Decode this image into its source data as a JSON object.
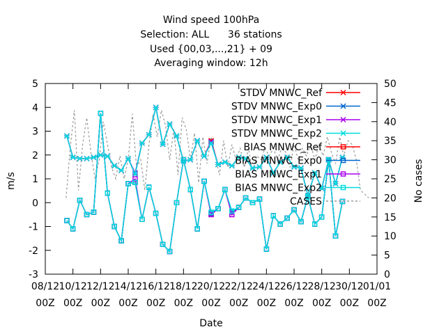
{
  "chart_data": {
    "type": "line",
    "title_lines": [
      "Wind speed 100hPa",
      "Selection: ALL      36 stations",
      "Used {00,03,...,21} + 09",
      "Averaging window: 12h"
    ],
    "xlabel": "Date",
    "ylabel": "m/s",
    "y2label": "No cases",
    "xlim": [
      0,
      12
    ],
    "ylim": [
      -3,
      5
    ],
    "y2lim": [
      0,
      50
    ],
    "x_ticks": [
      {
        "x": 0,
        "date": "08/12",
        "time": "00Z"
      },
      {
        "x": 1,
        "date": "10/12",
        "time": "00Z"
      },
      {
        "x": 2,
        "date": "12/12",
        "time": "00Z"
      },
      {
        "x": 3,
        "date": "14/12",
        "time": "00Z"
      },
      {
        "x": 4,
        "date": "16/12",
        "time": "00Z"
      },
      {
        "x": 5,
        "date": "18/12",
        "time": "00Z"
      },
      {
        "x": 6,
        "date": "20/12",
        "time": "00Z"
      },
      {
        "x": 7,
        "date": "22/12",
        "time": "00Z"
      },
      {
        "x": 8,
        "date": "24/12",
        "time": "00Z"
      },
      {
        "x": 9,
        "date": "26/12",
        "time": "00Z"
      },
      {
        "x": 10,
        "date": "28/12",
        "time": "00Z"
      },
      {
        "x": 11,
        "date": "30/12",
        "time": "00Z"
      },
      {
        "x": 12,
        "date": "01/01",
        "time": "00Z"
      }
    ],
    "y_ticks": [
      -3,
      -2,
      -1,
      0,
      1,
      2,
      3,
      4,
      5
    ],
    "y2_ticks": [
      0,
      5,
      10,
      15,
      20,
      25,
      30,
      35,
      40,
      45,
      50
    ],
    "grid": false,
    "legend_position": "top-right",
    "x": [
      0.78,
      1.0,
      1.25,
      1.5,
      1.75,
      2.0,
      2.25,
      2.5,
      2.75,
      3.0,
      3.25,
      3.5,
      3.75,
      4.0,
      4.25,
      4.5,
      4.75,
      5.0,
      5.25,
      5.5,
      5.75,
      6.0,
      6.25,
      6.5,
      6.75,
      7.0,
      7.25,
      7.5,
      7.75,
      8.0,
      8.25,
      8.5,
      8.75,
      9.0,
      9.25,
      9.5,
      9.75,
      10.0,
      10.25,
      10.5,
      10.75,
      11.0,
      11.25
    ],
    "series": [
      {
        "name": "STDV MNWC_Ref",
        "color": "#ff0000",
        "marker": "x",
        "axis": "y",
        "values": [
          2.8,
          1.9,
          1.85,
          1.85,
          1.9,
          2.0,
          1.95,
          1.55,
          1.35,
          1.85,
          1.2,
          2.5,
          2.85,
          4.0,
          2.45,
          3.3,
          2.8,
          1.75,
          1.8,
          2.6,
          1.95,
          2.6,
          1.6,
          1.7,
          1.55,
          1.9,
          1.85,
          1.45,
          1.5,
          1.9,
          1.25,
          1.7,
          1.9,
          1.5,
          1.45,
          0.3,
          1.25,
          0.6,
          1.8,
          0.8,
          1.9,
          null,
          null
        ]
      },
      {
        "name": "STDV MNWC_Exp0",
        "color": "#0066cc",
        "marker": "x",
        "axis": "y",
        "values": [
          2.8,
          1.9,
          1.85,
          1.85,
          1.9,
          2.0,
          1.95,
          1.55,
          1.35,
          1.85,
          1.2,
          2.5,
          2.85,
          4.0,
          2.45,
          3.3,
          2.8,
          1.75,
          1.8,
          2.6,
          1.95,
          2.55,
          1.6,
          1.7,
          1.55,
          1.9,
          1.85,
          1.45,
          1.5,
          1.9,
          1.25,
          1.7,
          1.9,
          1.5,
          1.45,
          0.3,
          1.25,
          0.6,
          1.8,
          0.8,
          1.9,
          null,
          null
        ]
      },
      {
        "name": "STDV MNWC_Exp1",
        "color": "#aa00ee",
        "marker": "x",
        "axis": "y",
        "values": [
          2.8,
          1.9,
          1.85,
          1.85,
          1.9,
          2.0,
          1.95,
          1.55,
          1.35,
          1.85,
          1.25,
          2.5,
          2.85,
          4.0,
          2.45,
          3.3,
          2.8,
          1.75,
          1.8,
          2.6,
          1.95,
          2.55,
          1.6,
          1.7,
          1.55,
          1.9,
          1.85,
          1.45,
          1.5,
          1.9,
          1.25,
          1.7,
          1.9,
          1.5,
          1.45,
          0.3,
          1.25,
          0.6,
          1.8,
          0.8,
          1.9,
          null,
          null
        ]
      },
      {
        "name": "STDV MNWC_Exp2",
        "color": "#00dddd",
        "marker": "x",
        "axis": "y",
        "values": [
          2.8,
          1.9,
          1.85,
          1.85,
          1.9,
          2.0,
          1.95,
          1.55,
          1.35,
          1.85,
          1.2,
          2.5,
          2.85,
          4.0,
          2.45,
          3.3,
          2.8,
          1.75,
          1.8,
          2.6,
          1.95,
          2.5,
          1.6,
          1.7,
          1.55,
          1.9,
          1.85,
          1.45,
          1.5,
          1.9,
          1.25,
          1.7,
          1.9,
          1.5,
          1.45,
          0.3,
          1.25,
          0.6,
          1.8,
          0.8,
          1.9,
          null,
          null
        ]
      },
      {
        "name": "BIAS MNWC_Ref",
        "color": "#ff0000",
        "marker": "square",
        "axis": "y",
        "values": [
          -0.75,
          -1.1,
          0.1,
          -0.5,
          -0.4,
          3.75,
          0.4,
          -1.0,
          -1.6,
          0.8,
          0.85,
          -0.7,
          0.65,
          -0.45,
          -1.75,
          -2.05,
          0.0,
          1.8,
          0.55,
          -1.1,
          0.9,
          -0.5,
          -0.25,
          0.55,
          -0.5,
          -0.2,
          0.2,
          0.0,
          0.15,
          -1.95,
          -0.55,
          -0.9,
          -0.65,
          -0.3,
          -0.8,
          0.25,
          -0.9,
          -0.6,
          1.8,
          -1.4,
          0.05,
          null,
          null
        ]
      },
      {
        "name": "BIAS MNWC_Exp0",
        "color": "#0066cc",
        "marker": "square",
        "axis": "y",
        "values": [
          -0.75,
          -1.1,
          0.1,
          -0.5,
          -0.4,
          3.75,
          0.4,
          -1.0,
          -1.6,
          0.8,
          0.85,
          -0.7,
          0.65,
          -0.45,
          -1.75,
          -2.05,
          0.0,
          1.8,
          0.55,
          -1.1,
          0.9,
          -0.45,
          -0.25,
          0.55,
          -0.4,
          -0.2,
          0.2,
          0.0,
          0.15,
          -1.95,
          -0.55,
          -0.9,
          -0.65,
          -0.3,
          -0.8,
          0.25,
          -0.9,
          -0.6,
          1.8,
          -1.4,
          0.05,
          null,
          null
        ]
      },
      {
        "name": "BIAS MNWC_Exp1",
        "color": "#aa00ee",
        "marker": "square",
        "axis": "y",
        "values": [
          -0.75,
          -1.1,
          0.1,
          -0.5,
          -0.4,
          3.75,
          0.4,
          -1.0,
          -1.6,
          0.8,
          1.0,
          -0.7,
          0.65,
          -0.45,
          -1.75,
          -2.05,
          0.0,
          1.8,
          0.55,
          -1.1,
          0.9,
          -0.5,
          -0.25,
          0.55,
          -0.5,
          -0.2,
          0.2,
          0.0,
          0.15,
          -1.95,
          -0.55,
          -0.9,
          -0.65,
          -0.3,
          -0.8,
          0.25,
          -0.9,
          -0.6,
          1.8,
          -1.4,
          0.05,
          null,
          null
        ]
      },
      {
        "name": "BIAS MNWC_Exp2",
        "color": "#00dddd",
        "marker": "square",
        "axis": "y",
        "values": [
          -0.75,
          -1.1,
          0.1,
          -0.5,
          -0.4,
          3.75,
          0.4,
          -1.0,
          -1.6,
          0.8,
          0.85,
          -0.7,
          0.65,
          -0.45,
          -1.75,
          -2.05,
          0.0,
          1.8,
          0.55,
          -1.1,
          0.9,
          -0.4,
          -0.25,
          0.55,
          -0.35,
          -0.2,
          0.2,
          0.0,
          0.15,
          -1.95,
          -0.55,
          -0.9,
          -0.65,
          -0.3,
          -0.8,
          0.25,
          -0.9,
          -0.6,
          1.8,
          -1.4,
          0.05,
          null,
          null
        ]
      }
    ],
    "cases": {
      "name": "CASES",
      "color": "#999999",
      "axis": "y2",
      "x": [
        0.75,
        0.9,
        1.05,
        1.2,
        1.35,
        1.5,
        1.65,
        1.8,
        1.95,
        2.1,
        2.25,
        2.4,
        2.55,
        2.7,
        2.85,
        3.0,
        3.15,
        3.3,
        3.45,
        3.6,
        3.75,
        3.9,
        4.05,
        4.2,
        4.35,
        4.5,
        4.65,
        4.8,
        4.95,
        5.1,
        5.25,
        5.4,
        5.55,
        5.7,
        5.85,
        6.0,
        6.15,
        6.3,
        6.45,
        6.6,
        6.75,
        6.9,
        7.05,
        7.2,
        7.35,
        7.5,
        7.65,
        7.8,
        7.95,
        8.1,
        8.25,
        8.4,
        8.55,
        8.7,
        8.85,
        9.0,
        9.15,
        9.3,
        9.45,
        9.6,
        9.75,
        9.9,
        10.05,
        10.2,
        10.35,
        10.5,
        10.65,
        10.8,
        10.95,
        11.1,
        11.25,
        11.4,
        11.55,
        11.7
      ],
      "values": [
        20,
        33,
        43,
        22,
        34,
        41,
        32,
        25,
        30,
        40,
        34,
        28,
        25,
        31,
        25,
        30,
        42,
        28,
        30,
        22,
        34,
        42,
        36,
        43,
        39,
        30,
        38,
        26,
        41,
        38,
        30,
        37,
        24,
        36,
        29,
        36,
        31,
        26,
        35,
        28,
        34,
        30,
        33,
        28,
        33,
        27,
        31,
        30,
        33,
        31,
        33,
        30,
        33,
        32,
        28,
        34,
        30,
        33,
        31,
        34,
        30,
        34,
        31,
        36,
        32,
        29,
        36,
        31,
        35,
        34,
        30,
        22,
        21,
        20
      ]
    }
  }
}
